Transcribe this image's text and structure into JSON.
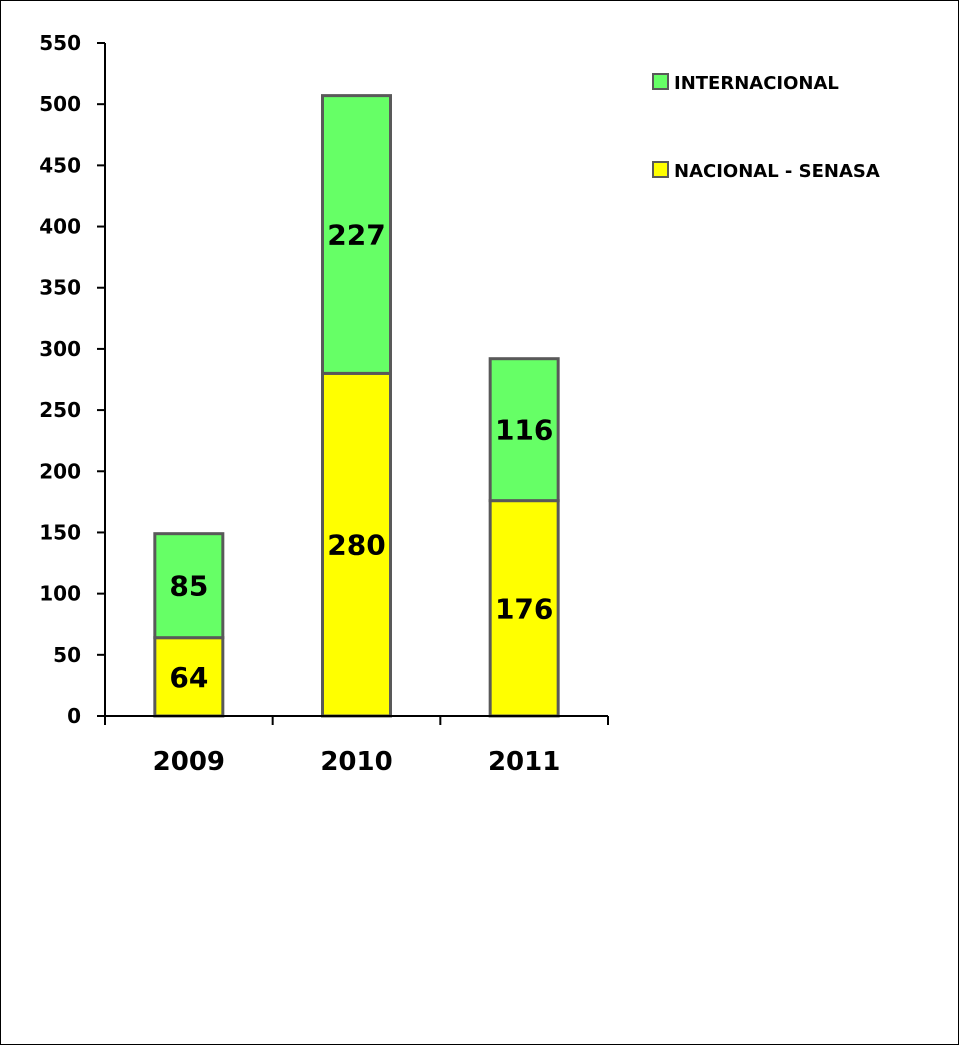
{
  "chart_data": {
    "type": "bar",
    "stacked": true,
    "categories": [
      "2009",
      "2010",
      "2011"
    ],
    "series": [
      {
        "name": "NACIONAL - SENASA",
        "values": [
          64,
          280,
          176
        ],
        "color": "#FFFF00"
      },
      {
        "name": "INTERNACIONAL",
        "values": [
          85,
          227,
          116
        ],
        "color": "#66FF66"
      }
    ],
    "ylim": [
      0,
      550
    ],
    "yticks": [
      0,
      50,
      100,
      150,
      200,
      250,
      300,
      350,
      400,
      450,
      500,
      550
    ],
    "ytick_labels": [
      "0",
      "50",
      "100",
      "150",
      "200",
      "250",
      "300",
      "350",
      "400",
      "450",
      "500",
      "550"
    ],
    "grid": false,
    "legend": {
      "position": "top-right",
      "entries": [
        {
          "label": "INTERNACIONAL",
          "color": "#66FF66"
        },
        {
          "label": "NACIONAL - SENASA",
          "color": "#FFFF00"
        }
      ]
    },
    "bar_border_color": "#595959"
  }
}
